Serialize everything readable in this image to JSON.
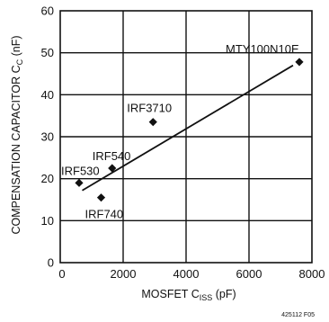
{
  "chart_data": {
    "type": "scatter",
    "title": "",
    "xlabel": "MOSFET C",
    "xlabel_sub": "ISS",
    "xlabel_unit": " (pF)",
    "ylabel": "COMPENSATION CAPACITOR C",
    "ylabel_sub": "C",
    "ylabel_unit": " (nF)",
    "xlim": [
      0,
      8000
    ],
    "ylim": [
      0,
      60
    ],
    "x_ticks": [
      0,
      2000,
      4000,
      6000,
      8000
    ],
    "y_ticks": [
      0,
      10,
      20,
      30,
      40,
      50,
      60
    ],
    "grid": true,
    "colors": {
      "marker": "#111111",
      "line": "#111111",
      "grid": "#111111"
    },
    "points": [
      {
        "label": "IRF530",
        "x": 600,
        "y": 19
      },
      {
        "label": "IRF740",
        "x": 1300,
        "y": 15.5
      },
      {
        "label": "IRF540",
        "x": 1650,
        "y": 22.5
      },
      {
        "label": "IRF3710",
        "x": 2950,
        "y": 33.5
      },
      {
        "label": "MTY100N10E",
        "x": 7600,
        "y": 47.8
      }
    ],
    "fit_line": {
      "x": [
        700,
        7400
      ],
      "y": [
        17.2,
        47
      ]
    }
  },
  "footnote": "425112 F05"
}
